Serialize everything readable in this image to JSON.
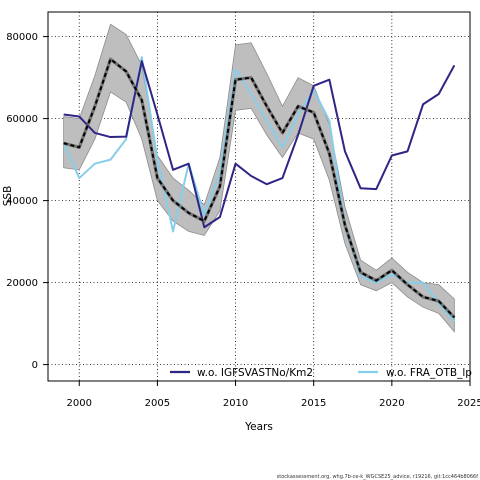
{
  "chart_data": {
    "type": "line",
    "xlabel": "Years",
    "ylabel": "SSB",
    "xlim": [
      1998,
      2025
    ],
    "ylim": [
      -4000,
      86000
    ],
    "xticks": [
      2000,
      2005,
      2010,
      2015,
      2020,
      2025
    ],
    "yticks": [
      0,
      20000,
      40000,
      60000,
      80000
    ],
    "grid": true,
    "legend_position": "bottom",
    "colors": {
      "series_1": "#2e2585",
      "series_2": "#87ceeb",
      "baseline": "#000000",
      "band": "#bebebe",
      "band_edge": "#8c8c8c"
    },
    "x": [
      1999,
      2000,
      2001,
      2002,
      2003,
      2004,
      2005,
      2006,
      2007,
      2008,
      2009,
      2010,
      2011,
      2012,
      2013,
      2014,
      2015,
      2016,
      2017,
      2018,
      2019,
      2020,
      2021,
      2022,
      2023,
      2024
    ],
    "series": [
      {
        "name": "w.o. IGFSVASTNo/Km2",
        "role": "sensitivity",
        "values": [
          61000,
          60500,
          56500,
          55500,
          55600,
          74000,
          61000,
          47500,
          49000,
          33500,
          36000,
          49000,
          46000,
          44000,
          45500,
          56000,
          68000,
          69500,
          52000,
          43000,
          42800,
          51000,
          52000,
          63500,
          66000,
          73000
        ]
      },
      {
        "name": "w.o. FRA_OTB_lp",
        "role": "sensitivity",
        "values": [
          54000,
          45500,
          49000,
          50000,
          55000,
          75000,
          50000,
          32500,
          49000,
          36500,
          47000,
          72000,
          66000,
          59500,
          53000,
          61000,
          67000,
          59500,
          34000,
          21500,
          20000,
          22000,
          20000,
          20000,
          15000,
          10500
        ]
      },
      {
        "role": "baseline",
        "values": [
          54000,
          53000,
          63000,
          74500,
          71500,
          64500,
          45500,
          40000,
          37000,
          35000,
          43500,
          69500,
          70000,
          63000,
          56500,
          63000,
          61500,
          51500,
          34000,
          22500,
          20500,
          23000,
          19500,
          16500,
          15500,
          11500
        ]
      }
    ],
    "band": {
      "lower": [
        48000,
        47500,
        55000,
        66500,
        64000,
        55000,
        40000,
        35000,
        32500,
        31500,
        37500,
        62000,
        62500,
        56000,
        50500,
        56500,
        55000,
        45000,
        29500,
        19500,
        18000,
        20000,
        16500,
        14000,
        12500,
        8000
      ],
      "upper": [
        60500,
        60000,
        70500,
        83000,
        80500,
        73000,
        51000,
        45500,
        42500,
        39000,
        50500,
        78000,
        78500,
        71000,
        63000,
        70000,
        68000,
        58500,
        38500,
        25500,
        23000,
        26000,
        22500,
        20000,
        19500,
        16000
      ]
    }
  },
  "footer_text": "stockassessment.org, whg.7b-ce-k_WGCSE25_advice, r19216, git:1cc464b8066f"
}
